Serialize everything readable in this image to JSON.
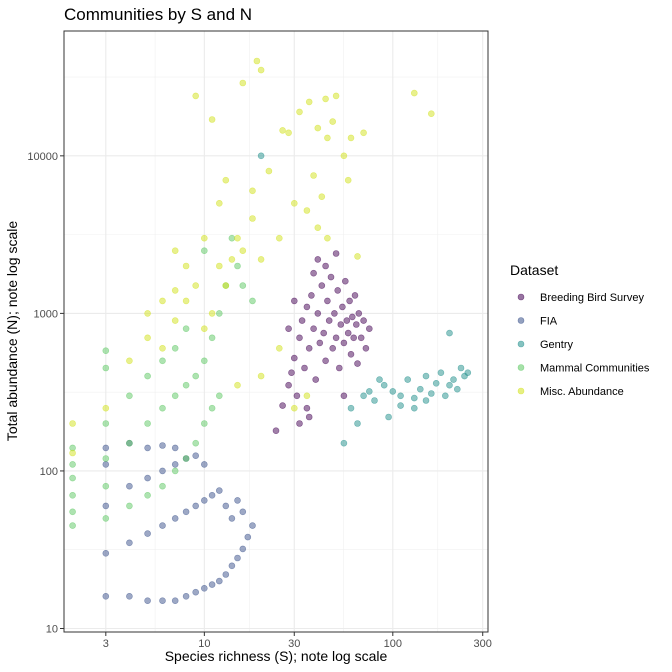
{
  "chart_data": {
    "type": "scatter",
    "title": "Communities by S and N",
    "xlabel": "Species richness (S); note log scale",
    "ylabel": "Total abundance (N); note log scale",
    "x_scale": "log",
    "y_scale": "log",
    "xlim": [
      1.8,
      320
    ],
    "ylim": [
      9.5,
      62000
    ],
    "x_ticks": [
      3,
      10,
      30,
      100,
      300
    ],
    "x_tick_labels": [
      "3",
      "10",
      "30",
      "100",
      "300"
    ],
    "y_ticks": [
      10,
      100,
      1000,
      10000
    ],
    "y_tick_labels": [
      "10",
      "100",
      "1000",
      "10000"
    ],
    "grid": true,
    "legend": {
      "title": "Dataset",
      "position": "right"
    },
    "series": [
      {
        "name": "Breeding Bird Survey",
        "color": "#440154",
        "points": [
          [
            24,
            180
          ],
          [
            26,
            260
          ],
          [
            28,
            350
          ],
          [
            29,
            420
          ],
          [
            30,
            520
          ],
          [
            31,
            300
          ],
          [
            32,
            700
          ],
          [
            33,
            900
          ],
          [
            34,
            450
          ],
          [
            35,
            1100
          ],
          [
            36,
            600
          ],
          [
            37,
            1300
          ],
          [
            38,
            800
          ],
          [
            39,
            380
          ],
          [
            40,
            1000
          ],
          [
            41,
            650
          ],
          [
            42,
            1500
          ],
          [
            43,
            750
          ],
          [
            44,
            500
          ],
          [
            45,
            1200
          ],
          [
            46,
            900
          ],
          [
            47,
            1700
          ],
          [
            48,
            600
          ],
          [
            49,
            1000
          ],
          [
            50,
            700
          ],
          [
            51,
            1400
          ],
          [
            52,
            450
          ],
          [
            53,
            850
          ],
          [
            54,
            1100
          ],
          [
            55,
            650
          ],
          [
            56,
            1600
          ],
          [
            57,
            900
          ],
          [
            58,
            750
          ],
          [
            59,
            1200
          ],
          [
            60,
            550
          ],
          [
            61,
            950
          ],
          [
            62,
            700
          ],
          [
            63,
            1300
          ],
          [
            64,
            850
          ],
          [
            65,
            480
          ],
          [
            66,
            1000
          ],
          [
            68,
            700
          ],
          [
            70,
            900
          ],
          [
            72,
            600
          ],
          [
            75,
            800
          ],
          [
            32,
            200
          ],
          [
            35,
            250
          ],
          [
            38,
            1800
          ],
          [
            40,
            2200
          ],
          [
            44,
            2000
          ],
          [
            50,
            2400
          ],
          [
            55,
            300
          ],
          [
            28,
            800
          ],
          [
            30,
            1200
          ],
          [
            36,
            220
          ]
        ]
      },
      {
        "name": "FIA",
        "color": "#3b528b",
        "points": [
          [
            3,
            16
          ],
          [
            3,
            30
          ],
          [
            3,
            60
          ],
          [
            3,
            110
          ],
          [
            3,
            140
          ],
          [
            4,
            16
          ],
          [
            4,
            35
          ],
          [
            4,
            80
          ],
          [
            4,
            150
          ],
          [
            5,
            15
          ],
          [
            5,
            40
          ],
          [
            5,
            90
          ],
          [
            5,
            140
          ],
          [
            6,
            15
          ],
          [
            6,
            45
          ],
          [
            6,
            100
          ],
          [
            6,
            145
          ],
          [
            7,
            15
          ],
          [
            7,
            50
          ],
          [
            7,
            110
          ],
          [
            7,
            140
          ],
          [
            8,
            16
          ],
          [
            8,
            55
          ],
          [
            8,
            120
          ],
          [
            9,
            17
          ],
          [
            9,
            60
          ],
          [
            9,
            125
          ],
          [
            10,
            18
          ],
          [
            10,
            65
          ],
          [
            10,
            110
          ],
          [
            11,
            19
          ],
          [
            11,
            70
          ],
          [
            12,
            20
          ],
          [
            12,
            75
          ],
          [
            13,
            22
          ],
          [
            13,
            60
          ],
          [
            14,
            25
          ],
          [
            14,
            50
          ],
          [
            15,
            28
          ],
          [
            15,
            65
          ],
          [
            16,
            32
          ],
          [
            16,
            55
          ],
          [
            17,
            38
          ],
          [
            18,
            45
          ]
        ]
      },
      {
        "name": "Gentry",
        "color": "#21908c",
        "points": [
          [
            20,
            10000
          ],
          [
            60,
            250
          ],
          [
            70,
            300
          ],
          [
            80,
            280
          ],
          [
            90,
            350
          ],
          [
            100,
            320
          ],
          [
            110,
            300
          ],
          [
            120,
            380
          ],
          [
            130,
            290
          ],
          [
            140,
            330
          ],
          [
            150,
            400
          ],
          [
            160,
            310
          ],
          [
            170,
            360
          ],
          [
            180,
            420
          ],
          [
            190,
            300
          ],
          [
            200,
            350
          ],
          [
            210,
            380
          ],
          [
            220,
            330
          ],
          [
            230,
            450
          ],
          [
            240,
            400
          ],
          [
            250,
            420
          ],
          [
            150,
            280
          ],
          [
            130,
            250
          ],
          [
            110,
            260
          ],
          [
            95,
            220
          ],
          [
            85,
            380
          ],
          [
            75,
            320
          ],
          [
            65,
            200
          ],
          [
            55,
            150
          ],
          [
            200,
            750
          ]
        ]
      },
      {
        "name": "Mammal Communities",
        "color": "#5dc863",
        "points": [
          [
            2,
            45
          ],
          [
            2,
            55
          ],
          [
            2,
            70
          ],
          [
            2,
            90
          ],
          [
            2,
            110
          ],
          [
            2,
            140
          ],
          [
            3,
            50
          ],
          [
            3,
            80
          ],
          [
            3,
            120
          ],
          [
            3,
            200
          ],
          [
            3,
            450
          ],
          [
            3,
            580
          ],
          [
            4,
            60
          ],
          [
            4,
            150
          ],
          [
            4,
            300
          ],
          [
            5,
            70
          ],
          [
            5,
            200
          ],
          [
            5,
            400
          ],
          [
            6,
            80
          ],
          [
            6,
            250
          ],
          [
            6,
            500
          ],
          [
            7,
            100
          ],
          [
            7,
            300
          ],
          [
            7,
            600
          ],
          [
            8,
            120
          ],
          [
            8,
            350
          ],
          [
            8,
            800
          ],
          [
            9,
            150
          ],
          [
            9,
            400
          ],
          [
            10,
            200
          ],
          [
            10,
            500
          ],
          [
            10,
            2500
          ],
          [
            11,
            250
          ],
          [
            11,
            700
          ],
          [
            12,
            300
          ],
          [
            12,
            1000
          ],
          [
            13,
            1500
          ],
          [
            14,
            3000
          ],
          [
            15,
            2000
          ],
          [
            16,
            1500
          ],
          [
            18,
            1200
          ]
        ]
      },
      {
        "name": "Misc. Abundance",
        "color": "#d2e21b",
        "points": [
          [
            2,
            200
          ],
          [
            2,
            130
          ],
          [
            3,
            250
          ],
          [
            4,
            500
          ],
          [
            5,
            700
          ],
          [
            5,
            1000
          ],
          [
            6,
            600
          ],
          [
            6,
            1200
          ],
          [
            7,
            900
          ],
          [
            7,
            1400
          ],
          [
            7,
            2500
          ],
          [
            8,
            1200
          ],
          [
            8,
            2000
          ],
          [
            9,
            1500
          ],
          [
            9,
            24000
          ],
          [
            10,
            800
          ],
          [
            10,
            3000
          ],
          [
            11,
            1000
          ],
          [
            11,
            17000
          ],
          [
            12,
            2000
          ],
          [
            12,
            5000
          ],
          [
            13,
            1500
          ],
          [
            13,
            7000
          ],
          [
            14,
            2200
          ],
          [
            15,
            3000
          ],
          [
            16,
            2500
          ],
          [
            16,
            29000
          ],
          [
            18,
            4000
          ],
          [
            18,
            6000
          ],
          [
            19,
            40000
          ],
          [
            20,
            35000
          ],
          [
            20,
            2200
          ],
          [
            22,
            8000
          ],
          [
            25,
            3000
          ],
          [
            26,
            14500
          ],
          [
            28,
            14000
          ],
          [
            30,
            5000
          ],
          [
            32,
            19000
          ],
          [
            35,
            4500
          ],
          [
            36,
            22000
          ],
          [
            38,
            7500
          ],
          [
            40,
            15000
          ],
          [
            42,
            5500
          ],
          [
            44,
            23000
          ],
          [
            45,
            13000
          ],
          [
            48,
            16500
          ],
          [
            50,
            24000
          ],
          [
            55,
            10000
          ],
          [
            58,
            7000
          ],
          [
            60,
            13000
          ],
          [
            65,
            2300
          ],
          [
            70,
            14000
          ],
          [
            130,
            25000
          ],
          [
            160,
            18500
          ],
          [
            40,
            3500
          ],
          [
            45,
            3000
          ],
          [
            15,
            350
          ],
          [
            20,
            400
          ],
          [
            25,
            600
          ],
          [
            30,
            250
          ],
          [
            35,
            300
          ]
        ]
      }
    ]
  }
}
